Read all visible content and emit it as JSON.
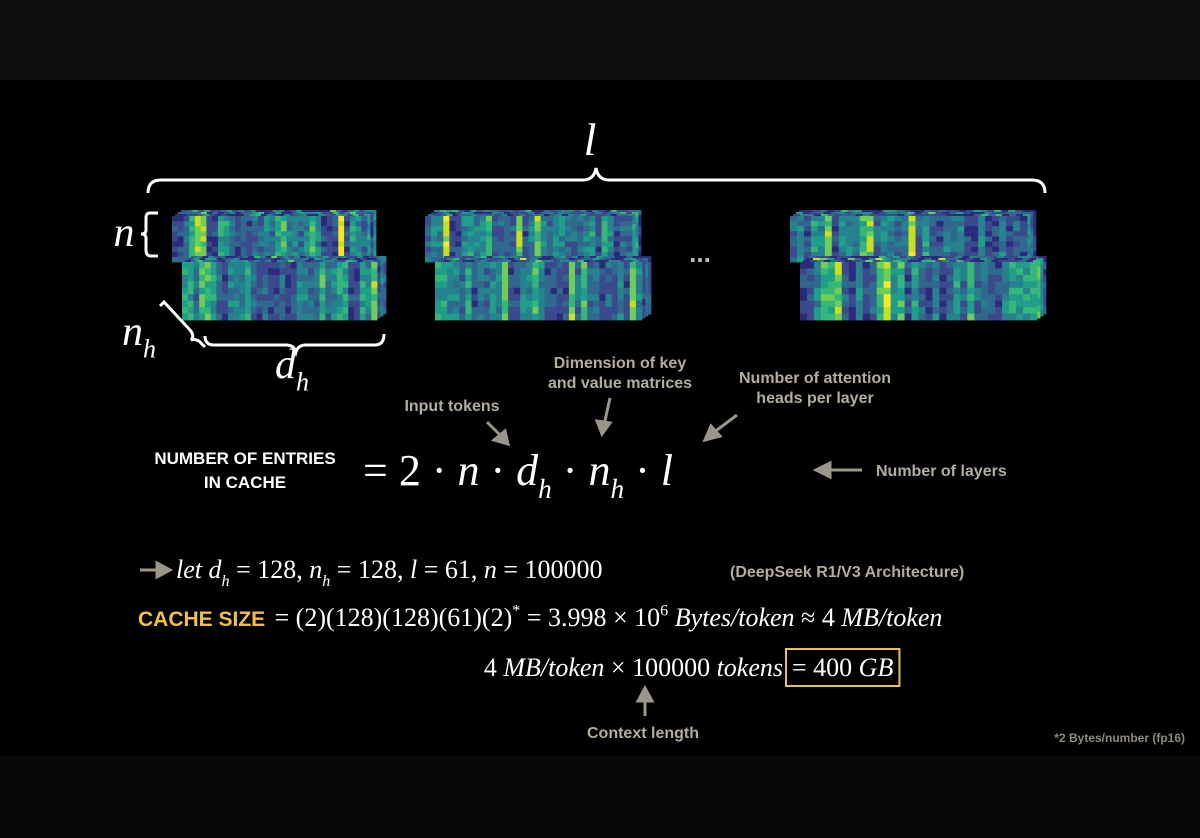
{
  "diagram": {
    "l_label": "l",
    "n_label": "n",
    "nh_label": {
      "t": "n",
      "sub": "h"
    },
    "dh_label": {
      "t": "d",
      "sub": "h"
    },
    "ellipsis": "..."
  },
  "annotations": {
    "input_tokens": "Input tokens",
    "key_value_dim": [
      "Dimension of key",
      "and value matrices"
    ],
    "attention_heads": [
      "Number of attention",
      "heads per layer"
    ],
    "layers": "Number of layers",
    "context_length": "Context length"
  },
  "equation": {
    "lhs": [
      "NUMBER OF ENTRIES",
      "IN CACHE"
    ],
    "rhs": [
      {
        "t": "= "
      },
      {
        "t": "2"
      },
      {
        "t": " · "
      },
      {
        "t": "n"
      },
      {
        "t": " · "
      },
      {
        "t": "d",
        "sub": "h"
      },
      {
        "t": " · "
      },
      {
        "t": "n",
        "sub": "h"
      },
      {
        "t": " · "
      },
      {
        "t": "l"
      }
    ]
  },
  "assumption": {
    "segments": [
      {
        "t": "let"
      },
      {
        "t": " "
      },
      {
        "t": "d",
        "sub": "h"
      },
      {
        "t": " = 128, "
      },
      {
        "t": "n",
        "sub": "h"
      },
      {
        "t": " = 128, "
      },
      {
        "t": "l"
      },
      {
        "t": " = 61, "
      },
      {
        "t": "n"
      },
      {
        "t": " = 100000"
      }
    ],
    "note": "(DeepSeek R1/V3 Architecture)"
  },
  "cache_size": {
    "label": "CACHE SIZE",
    "segments": [
      {
        "t": " = (2)(128)(128)(61)(2)",
        "sup": "*"
      },
      {
        "t": " = 3.998 × 10",
        "sup": "6"
      },
      {
        "t": " "
      },
      {
        "t": "Bytes/token"
      },
      {
        "t": " ≈ 4 "
      },
      {
        "t": "MB/token"
      }
    ]
  },
  "total": {
    "segments": [
      {
        "t": "4 "
      },
      {
        "t": "MB/token"
      },
      {
        "t": " × 100000 "
      },
      {
        "t": "tokens"
      }
    ],
    "result": [
      {
        "t": "= 400 "
      },
      {
        "t": "GB"
      }
    ]
  },
  "footnote": "*2 Bytes/number (fp16)"
}
